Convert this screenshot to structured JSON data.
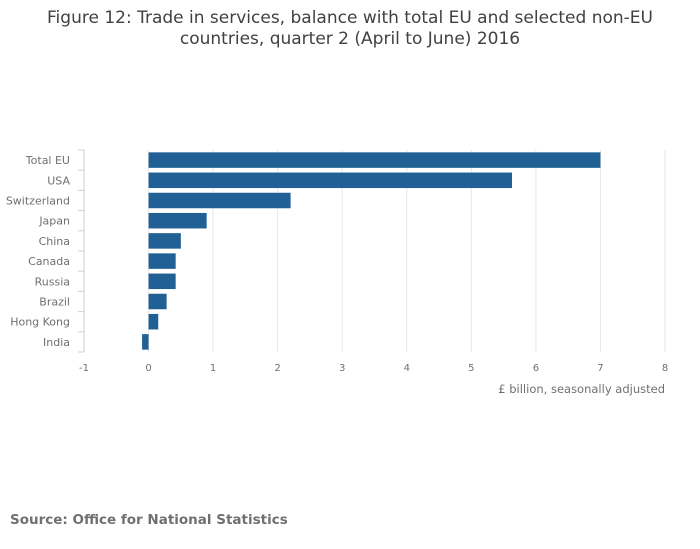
{
  "title_lines": [
    "Figure 12: Trade in services, balance with total EU and selected non-EU",
    "countries, quarter 2 (April to June) 2016"
  ],
  "source": "Source: Office for National Statistics",
  "colors": {
    "bar": "#206095",
    "grid": "#e6e6e6",
    "text": "#707070",
    "title": "#414042"
  },
  "chart_data": {
    "type": "bar",
    "orientation": "horizontal",
    "title": "Figure 12: Trade in services, balance with total EU and selected non-EU countries, quarter 2 (April to June) 2016",
    "categories": [
      "Total EU",
      "USA",
      "Switzerland",
      "Japan",
      "China",
      "Canada",
      "Russia",
      "Brazil",
      "Hong Kong",
      "India"
    ],
    "values": [
      7.0,
      5.63,
      2.2,
      0.9,
      0.5,
      0.42,
      0.42,
      0.28,
      0.15,
      -0.1
    ],
    "xlabel": "£ billion, seasonally adjusted",
    "ylabel": "",
    "xlim": [
      -1,
      8
    ],
    "xticks": [
      -1,
      0,
      1,
      2,
      3,
      4,
      5,
      6,
      7,
      8
    ],
    "grid": true,
    "legend": "none"
  }
}
